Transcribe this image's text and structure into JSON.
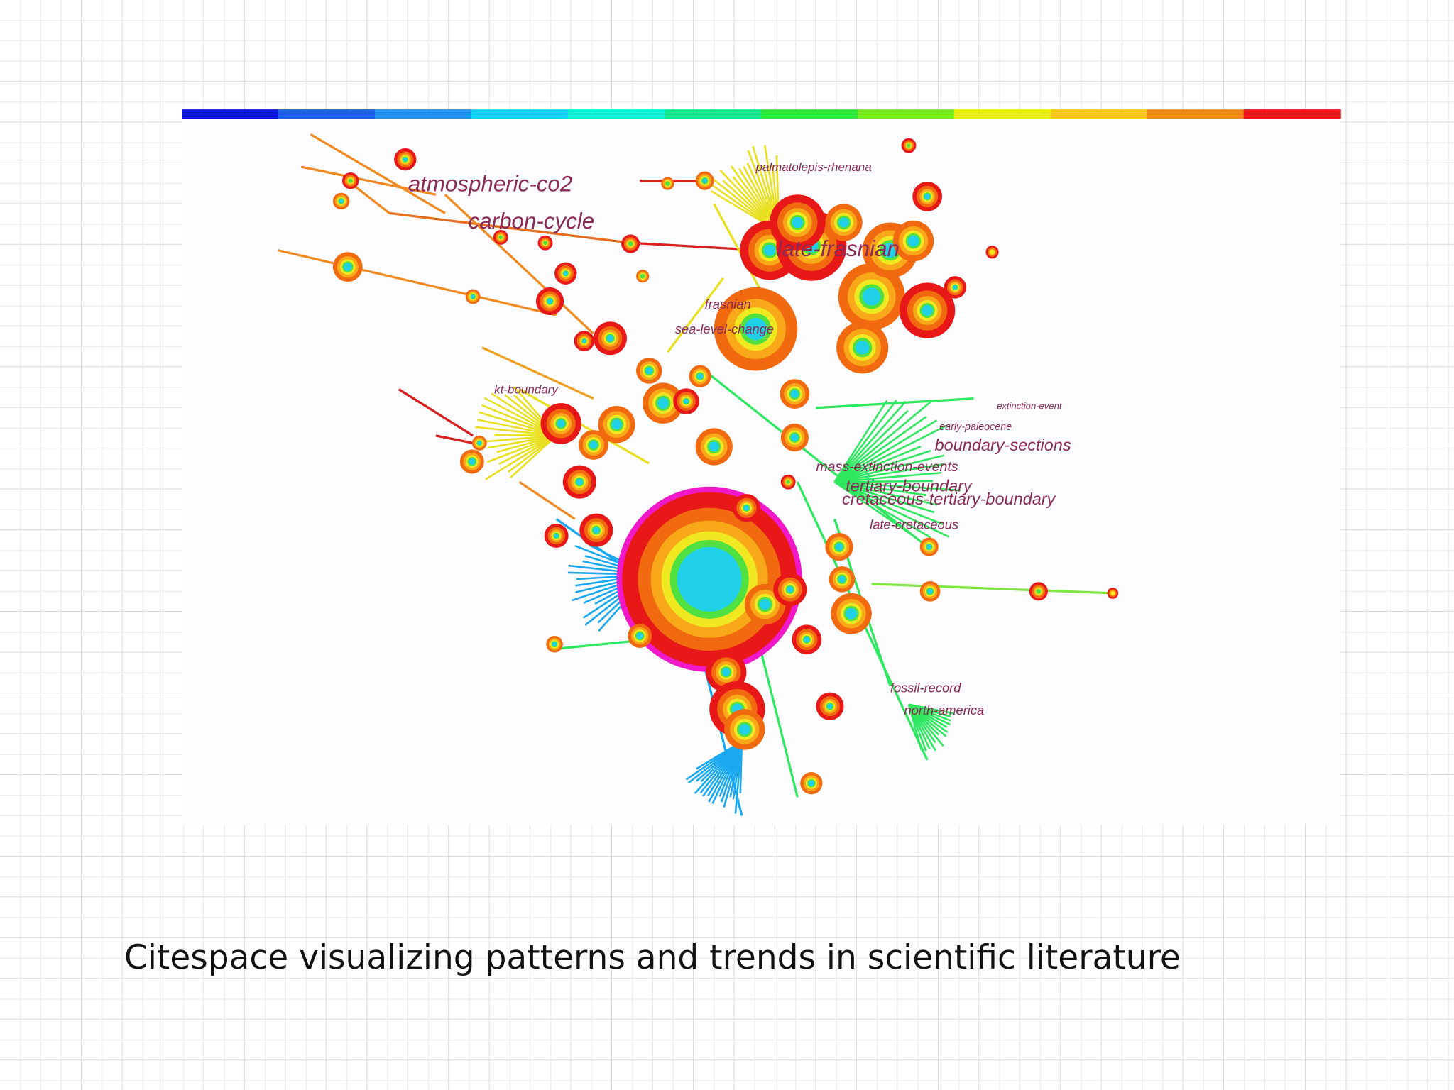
{
  "slide": {
    "caption": "Citespace visualizing patterns and trends in scientific literature"
  },
  "network": {
    "labels": [
      "atmospheric-co2",
      "carbon-cycle",
      "palmatolepis-rhenana",
      "late-frasnian",
      "frasnian",
      "sea-level-change",
      "kt-boundary",
      "extinction-event",
      "early-paleocene",
      "boundary-sections",
      "mass-extinction-events",
      "tertiary-boundary",
      "cretaceous-tertiary-boundary",
      "late-cretaceous",
      "fossil-record",
      "north-america"
    ]
  }
}
